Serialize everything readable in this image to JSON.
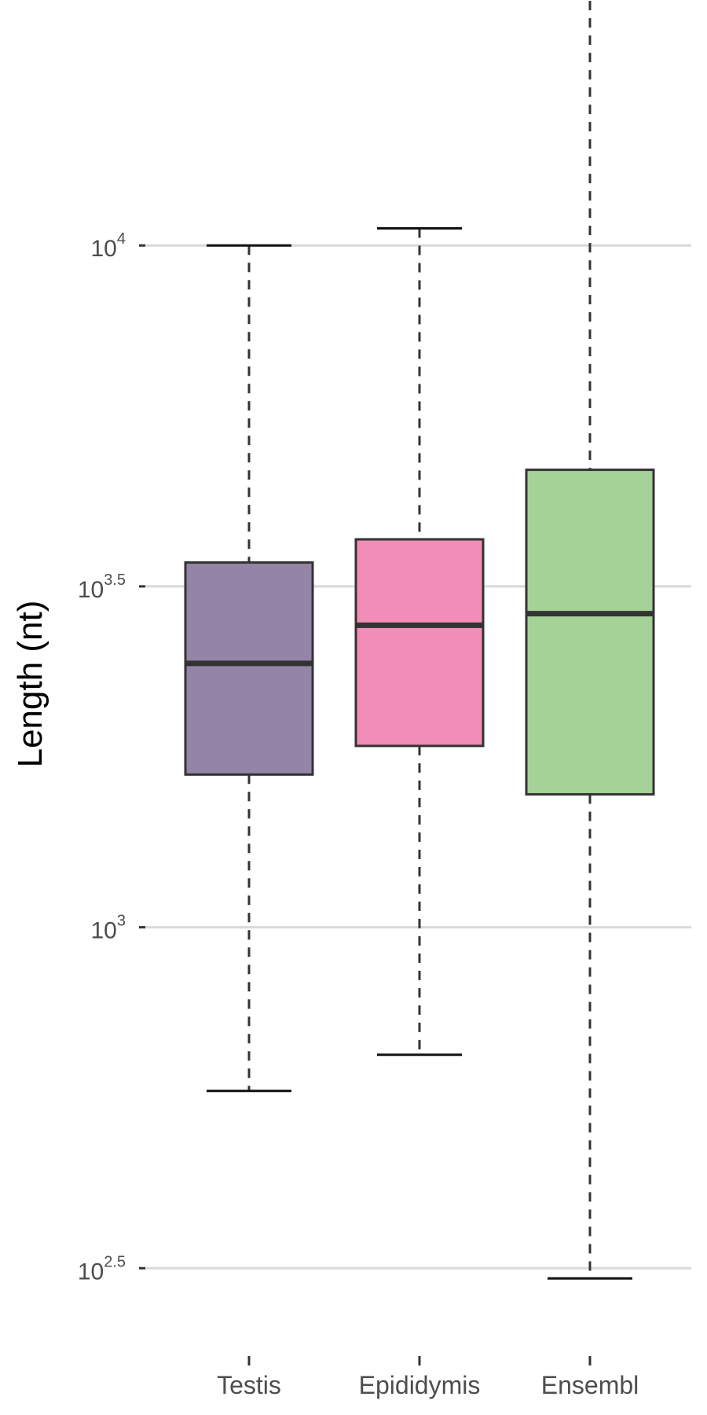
{
  "chart_data": {
    "type": "box",
    "ylabel": "Length (nt)",
    "y_scale": "log10",
    "ylim_log10": [
      2.4,
      4.36
    ],
    "grid": true,
    "y_ticks": [
      {
        "base": "10",
        "exp": "2.5",
        "log10": 2.5
      },
      {
        "base": "10",
        "exp": "3",
        "log10": 3.0
      },
      {
        "base": "10",
        "exp": "3.5",
        "log10": 3.5
      },
      {
        "base": "10",
        "exp": "4",
        "log10": 4.0
      }
    ],
    "categories": [
      "Testis",
      "Epididymis",
      "Ensembl"
    ],
    "boxes": [
      {
        "name": "Testis",
        "color": "#9484a8",
        "whisker_low_log10": 2.76,
        "q1_log10": 3.224,
        "median_log10": 3.387,
        "q3_log10": 3.535,
        "whisker_high_log10": 4.0
      },
      {
        "name": "Epididymis",
        "color": "#f18db7",
        "whisker_low_log10": 2.813,
        "q1_log10": 3.266,
        "median_log10": 3.443,
        "q3_log10": 3.569,
        "whisker_high_log10": 4.025
      },
      {
        "name": "Ensembl",
        "color": "#a5d296",
        "whisker_low_log10": 2.485,
        "q1_log10": 3.195,
        "median_log10": 3.46,
        "q3_log10": 3.671,
        "whisker_high_log10": 4.384
      }
    ]
  }
}
